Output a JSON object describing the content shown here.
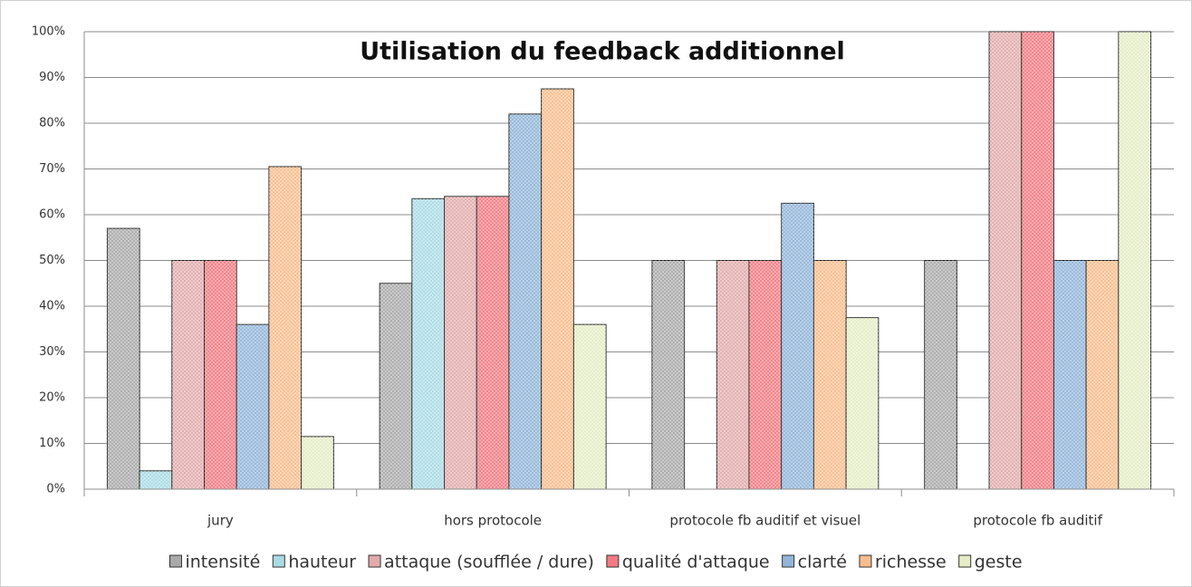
{
  "chart_data": {
    "type": "bar",
    "title": "Utilisation du feedback additionnel",
    "categories": [
      "jury",
      "hors protocole",
      "protocole fb auditif et visuel",
      "protocole fb auditif"
    ],
    "series": [
      {
        "name": "intensité",
        "color": "#a9a9a9",
        "values": [
          57,
          45,
          50,
          50
        ]
      },
      {
        "name": "hauteur",
        "color": "#a9dbe5",
        "values": [
          4,
          63.5,
          0,
          0
        ]
      },
      {
        "name": "attaque (soufflée / dure)",
        "color": "#e2abab",
        "values": [
          50,
          64,
          50,
          100
        ]
      },
      {
        "name": "qualité d'attaque",
        "color": "#f27b82",
        "values": [
          50,
          64,
          50,
          100
        ]
      },
      {
        "name": "clarté",
        "color": "#92b5d9",
        "values": [
          36,
          82,
          62.5,
          50
        ]
      },
      {
        "name": "richesse",
        "color": "#f8bd8d",
        "values": [
          70.5,
          87.5,
          50,
          50
        ]
      },
      {
        "name": "geste",
        "color": "#e4edc6",
        "values": [
          11.5,
          36,
          37.5,
          100
        ]
      }
    ],
    "ylim": [
      0,
      100
    ],
    "yticks": [
      {
        "value": 0,
        "label": "0%"
      },
      {
        "value": 10,
        "label": "10%"
      },
      {
        "value": 20,
        "label": "20%"
      },
      {
        "value": 30,
        "label": "30%"
      },
      {
        "value": 40,
        "label": "40%"
      },
      {
        "value": 50,
        "label": "50%"
      },
      {
        "value": 60,
        "label": "60%"
      },
      {
        "value": 70,
        "label": "70%"
      },
      {
        "value": 80,
        "label": "80%"
      },
      {
        "value": 90,
        "label": "90%"
      },
      {
        "value": 100,
        "label": "100%"
      }
    ],
    "grid": true,
    "legend": "bottom"
  }
}
